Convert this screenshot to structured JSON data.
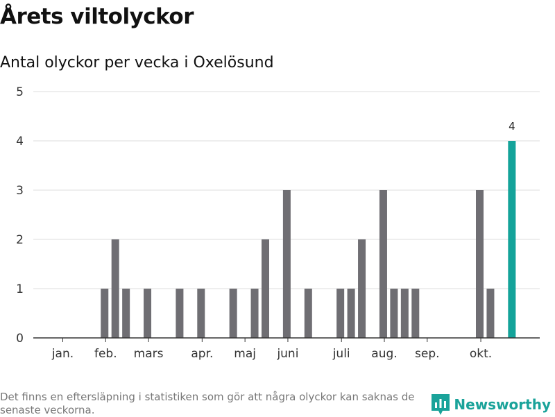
{
  "header": {
    "title": "Årets viltolyckor",
    "subtitle": "Antal olyckor per vecka i Oxelösund"
  },
  "footer": {
    "note": "Det finns en eftersläpning i statistiken som gör att några olyckor kan saknas de senaste veckorna.",
    "brand": "Newsworthy"
  },
  "colors": {
    "bar": "#6f6e73",
    "highlight": "#14a39a",
    "grid": "#dddddd",
    "axis": "#333333",
    "brand": "#1aa39a"
  },
  "chart_data": {
    "type": "bar",
    "title": "Årets viltolyckor",
    "subtitle": "Antal olyckor per vecka i Oxelösund",
    "xlabel": "",
    "ylabel": "",
    "ylim": [
      0,
      5
    ],
    "yticks": [
      0,
      1,
      2,
      3,
      4,
      5
    ],
    "grid": true,
    "x_unit": "week",
    "weeks": [
      1,
      2,
      3,
      4,
      5,
      6,
      7,
      8,
      9,
      10,
      11,
      12,
      13,
      14,
      15,
      16,
      17,
      18,
      19,
      20,
      21,
      22,
      23,
      24,
      25,
      26,
      27,
      28,
      29,
      30,
      31,
      32,
      33,
      34,
      35,
      36,
      37,
      38,
      39,
      40,
      41,
      42,
      43
    ],
    "values": [
      0,
      0,
      0,
      0,
      1,
      2,
      1,
      0,
      1,
      0,
      0,
      1,
      0,
      1,
      0,
      0,
      1,
      0,
      1,
      2,
      0,
      3,
      0,
      1,
      0,
      0,
      1,
      1,
      2,
      0,
      3,
      1,
      1,
      1,
      0,
      0,
      0,
      0,
      0,
      3,
      1,
      0,
      4
    ],
    "highlight_index": 42,
    "highlight_label": "4",
    "month_ticks": [
      {
        "label": "jan.",
        "week": 1.1
      },
      {
        "label": "feb.",
        "week": 5.1
      },
      {
        "label": "mars",
        "week": 9.1
      },
      {
        "label": "apr.",
        "week": 14.1
      },
      {
        "label": "maj",
        "week": 18.1
      },
      {
        "label": "juni",
        "week": 22.1
      },
      {
        "label": "juli",
        "week": 27.1
      },
      {
        "label": "aug.",
        "week": 31.1
      },
      {
        "label": "sep.",
        "week": 35.1
      },
      {
        "label": "okt.",
        "week": 40.1
      }
    ]
  }
}
